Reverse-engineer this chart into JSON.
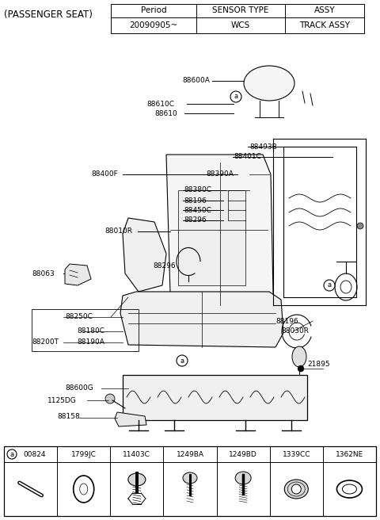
{
  "title": "(PASSENGER SEAT)",
  "table_headers": [
    "Period",
    "SENSOR TYPE",
    "ASSY"
  ],
  "table_row": [
    "20090905~",
    "WCS",
    "TRACK ASSY"
  ],
  "bg_color": "#ffffff",
  "label_fontsize": 6.5,
  "title_fontsize": 8.5,
  "table_fontsize": 7.5,
  "bottom_codes": [
    "00824",
    "1799JC",
    "11403C",
    "1249BA",
    "1249BD",
    "1339CC",
    "1362NE"
  ]
}
